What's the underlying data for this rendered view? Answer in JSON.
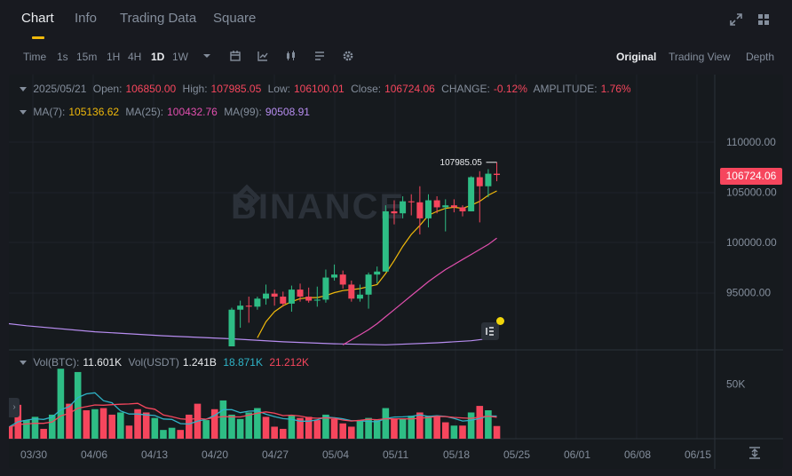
{
  "tabs": [
    "Chart",
    "Info",
    "Trading Data",
    "Square"
  ],
  "toolbar": {
    "intervals": [
      "Time",
      "1s",
      "15m",
      "1H",
      "4H",
      "1D",
      "1W"
    ],
    "active_interval": "1D",
    "views": [
      "Original",
      "Trading View",
      "Depth"
    ],
    "active_view": "Original"
  },
  "ohlc": {
    "date": "2025/05/21",
    "open_label": "Open:",
    "open": "106850.00",
    "high_label": "High:",
    "high": "107985.05",
    "low_label": "Low:",
    "low": "106100.01",
    "close_label": "Close:",
    "close": "106724.06",
    "change_label": "CHANGE:",
    "change": "-0.12%",
    "amplitude_label": "AMPLITUDE:",
    "amplitude": "1.76%"
  },
  "ma": {
    "ma7_label": "MA(7):",
    "ma7": "105136.62",
    "ma25_label": "MA(25):",
    "ma25": "100432.76",
    "ma99_label": "MA(99):",
    "ma99": "90508.91"
  },
  "vol": {
    "btc_label": "Vol(BTC):",
    "btc": "11.601K",
    "usdt_label": "Vol(USDT)",
    "usdt": "1.241B",
    "ma5": "18.871K",
    "ma10": "21.212K"
  },
  "price_axis": [
    "110000.00",
    "105000.00",
    "100000.00",
    "95000.00"
  ],
  "current_price": "106724.06",
  "high_marker": "107985.05",
  "vol_axis": "50K",
  "date_axis": [
    "03/30",
    "04/06",
    "04/13",
    "04/20",
    "04/27",
    "05/04",
    "05/11",
    "05/18",
    "05/25",
    "06/01",
    "06/08",
    "06/15"
  ],
  "watermark": "BINANCE",
  "colors": {
    "up": "#2ebd85",
    "down": "#f6465d",
    "ma7": "#f0b90b",
    "ma25": "#e14fae",
    "ma99": "#b78df0",
    "vol_ma5": "#2fb3c7",
    "vol_ma10": "#f6465d",
    "accent": "#f0b90b"
  },
  "chart_data": {
    "type": "candlestick",
    "price_ylim": [
      90000,
      112500
    ],
    "volume_ylim": [
      0,
      65000
    ],
    "candles": [
      {
        "date": "04/20",
        "o": 85200,
        "h": 93500,
        "l": 85000,
        "c": 93300
      },
      {
        "date": "04/21",
        "o": 93300,
        "h": 94200,
        "l": 91500,
        "c": 93700
      },
      {
        "date": "04/22",
        "o": 93700,
        "h": 94600,
        "l": 92000,
        "c": 93600
      },
      {
        "date": "04/23",
        "o": 93600,
        "h": 94600,
        "l": 93300,
        "c": 94400
      },
      {
        "date": "04/24",
        "o": 94400,
        "h": 95800,
        "l": 93800,
        "c": 94900
      },
      {
        "date": "04/25",
        "o": 94900,
        "h": 95300,
        "l": 93700,
        "c": 94600
      },
      {
        "date": "04/26",
        "o": 94600,
        "h": 95100,
        "l": 93600,
        "c": 93900
      },
      {
        "date": "04/27",
        "o": 93900,
        "h": 95700,
        "l": 93100,
        "c": 95300
      },
      {
        "date": "04/28",
        "o": 95300,
        "h": 95900,
        "l": 94100,
        "c": 94600
      },
      {
        "date": "04/29",
        "o": 94600,
        "h": 95500,
        "l": 94000,
        "c": 94200
      },
      {
        "date": "04/30",
        "o": 94200,
        "h": 95600,
        "l": 93600,
        "c": 94300
      },
      {
        "date": "05/01",
        "o": 94300,
        "h": 97300,
        "l": 94000,
        "c": 96500
      },
      {
        "date": "05/02",
        "o": 96500,
        "h": 97800,
        "l": 96200,
        "c": 96800
      },
      {
        "date": "05/03",
        "o": 96800,
        "h": 97200,
        "l": 95400,
        "c": 95800
      },
      {
        "date": "05/04",
        "o": 95800,
        "h": 96200,
        "l": 94100,
        "c": 94400
      },
      {
        "date": "05/05",
        "o": 94400,
        "h": 95800,
        "l": 94100,
        "c": 94800
      },
      {
        "date": "05/06",
        "o": 94800,
        "h": 97000,
        "l": 93400,
        "c": 96800
      },
      {
        "date": "05/07",
        "o": 96800,
        "h": 97600,
        "l": 95900,
        "c": 97100
      },
      {
        "date": "05/08",
        "o": 97100,
        "h": 103700,
        "l": 97100,
        "c": 103100
      },
      {
        "date": "05/09",
        "o": 103100,
        "h": 104200,
        "l": 101800,
        "c": 102900
      },
      {
        "date": "05/10",
        "o": 102900,
        "h": 104600,
        "l": 102400,
        "c": 104100
      },
      {
        "date": "05/11",
        "o": 104100,
        "h": 104800,
        "l": 102700,
        "c": 104000
      },
      {
        "date": "05/12",
        "o": 104000,
        "h": 105600,
        "l": 100800,
        "c": 102400
      },
      {
        "date": "05/13",
        "o": 102400,
        "h": 104800,
        "l": 101500,
        "c": 104200
      },
      {
        "date": "05/14",
        "o": 104200,
        "h": 104600,
        "l": 102900,
        "c": 103500
      },
      {
        "date": "05/15",
        "o": 103500,
        "h": 104300,
        "l": 101100,
        "c": 103700
      },
      {
        "date": "05/16",
        "o": 103700,
        "h": 104300,
        "l": 103000,
        "c": 103500
      },
      {
        "date": "05/17",
        "o": 103500,
        "h": 103700,
        "l": 102600,
        "c": 103100
      },
      {
        "date": "05/18",
        "o": 103100,
        "h": 106600,
        "l": 103100,
        "c": 106500
      },
      {
        "date": "05/19",
        "o": 106500,
        "h": 107100,
        "l": 102000,
        "c": 105600
      },
      {
        "date": "05/20",
        "o": 105600,
        "h": 107300,
        "l": 104500,
        "c": 106850
      },
      {
        "date": "05/21",
        "o": 106850,
        "h": 107985.05,
        "l": 106100.01,
        "c": 106724.06
      }
    ],
    "ma7": [
      [
        0,
        84200
      ],
      [
        1,
        86000
      ],
      [
        2,
        88300
      ],
      [
        3,
        90500
      ],
      [
        4,
        92100
      ],
      [
        5,
        93100
      ],
      [
        6,
        93700
      ],
      [
        7,
        94100
      ],
      [
        8,
        94400
      ],
      [
        9,
        94500
      ],
      [
        10,
        94500
      ],
      [
        11,
        94700
      ],
      [
        12,
        95000
      ],
      [
        13,
        95200
      ],
      [
        14,
        95300
      ],
      [
        15,
        95400
      ],
      [
        16,
        95600
      ],
      [
        17,
        95800
      ],
      [
        18,
        96900
      ],
      [
        19,
        98200
      ],
      [
        20,
        99600
      ],
      [
        21,
        100800
      ],
      [
        22,
        101700
      ],
      [
        23,
        102700
      ],
      [
        24,
        103100
      ],
      [
        25,
        103400
      ],
      [
        26,
        103500
      ],
      [
        27,
        103400
      ],
      [
        28,
        103700
      ],
      [
        29,
        104100
      ],
      [
        30,
        104700
      ],
      [
        31,
        105136.62
      ]
    ],
    "ma25": [
      [
        11,
        88800
      ],
      [
        12,
        89300
      ],
      [
        13,
        89800
      ],
      [
        14,
        90300
      ],
      [
        15,
        90800
      ],
      [
        16,
        91300
      ],
      [
        17,
        91900
      ],
      [
        18,
        92600
      ],
      [
        19,
        93300
      ],
      [
        20,
        94000
      ],
      [
        21,
        94700
      ],
      [
        22,
        95400
      ],
      [
        23,
        96100
      ],
      [
        24,
        96700
      ],
      [
        25,
        97300
      ],
      [
        26,
        97800
      ],
      [
        27,
        98300
      ],
      [
        28,
        98800
      ],
      [
        29,
        99300
      ],
      [
        30,
        99800
      ],
      [
        31,
        100432.76
      ]
    ],
    "ma99_note_points": [
      [
        -36,
        93100
      ],
      [
        -30,
        92300
      ],
      [
        -24,
        91700
      ],
      [
        -16,
        91100
      ],
      [
        -8,
        90700
      ],
      [
        0,
        90400
      ],
      [
        6,
        90100
      ],
      [
        12,
        89900
      ],
      [
        18,
        89800
      ],
      [
        24,
        90000
      ],
      [
        28,
        90200
      ],
      [
        31,
        90508.91
      ]
    ],
    "volume_bars": [
      {
        "d": -32,
        "v": 9500,
        "up": true
      },
      {
        "d": -31,
        "v": 9200,
        "up": true
      },
      {
        "d": -30,
        "v": 8500,
        "up": false
      },
      {
        "d": -29,
        "v": 9000,
        "up": false
      },
      {
        "d": -28,
        "v": 14000,
        "up": true
      },
      {
        "d": -27,
        "v": 12000,
        "up": true
      },
      {
        "d": -26,
        "v": 11000,
        "up": false
      },
      {
        "d": -25,
        "v": 31000,
        "up": false
      },
      {
        "d": -24,
        "v": 17000,
        "up": true
      },
      {
        "d": -23,
        "v": 20000,
        "up": true
      },
      {
        "d": -22,
        "v": 9000,
        "up": false
      },
      {
        "d": -21,
        "v": 22000,
        "up": true
      },
      {
        "d": -20,
        "v": 64000,
        "up": true
      },
      {
        "d": -19,
        "v": 32000,
        "up": false
      },
      {
        "d": -18,
        "v": 61000,
        "up": true
      },
      {
        "d": -17,
        "v": 26000,
        "up": false
      },
      {
        "d": -16,
        "v": 27000,
        "up": true
      },
      {
        "d": -15,
        "v": 28000,
        "up": false
      },
      {
        "d": -14,
        "v": 22000,
        "up": false
      },
      {
        "d": -13,
        "v": 24000,
        "up": true
      },
      {
        "d": -12,
        "v": 12000,
        "up": false
      },
      {
        "d": -11,
        "v": 27000,
        "up": false
      },
      {
        "d": -10,
        "v": 24000,
        "up": false
      },
      {
        "d": -9,
        "v": 19000,
        "up": true
      },
      {
        "d": -8,
        "v": 8000,
        "up": true
      },
      {
        "d": -7,
        "v": 10000,
        "up": true
      },
      {
        "d": -6,
        "v": 8000,
        "up": false
      },
      {
        "d": -5,
        "v": 22000,
        "up": false
      },
      {
        "d": -4,
        "v": 32000,
        "up": false
      },
      {
        "d": -3,
        "v": 17000,
        "up": true
      },
      {
        "d": -2,
        "v": 27000,
        "up": false
      },
      {
        "d": -1,
        "v": 35000,
        "up": true
      },
      {
        "d": 0,
        "v": 22000,
        "up": true
      },
      {
        "d": 1,
        "v": 18000,
        "up": true
      },
      {
        "d": 2,
        "v": 24000,
        "up": true
      },
      {
        "d": 3,
        "v": 28000,
        "up": true
      },
      {
        "d": 4,
        "v": 20000,
        "up": false
      },
      {
        "d": 5,
        "v": 11000,
        "up": false
      },
      {
        "d": 6,
        "v": 9000,
        "up": false
      },
      {
        "d": 7,
        "v": 21000,
        "up": true
      },
      {
        "d": 8,
        "v": 19000,
        "up": false
      },
      {
        "d": 9,
        "v": 20000,
        "up": false
      },
      {
        "d": 10,
        "v": 17000,
        "up": false
      },
      {
        "d": 11,
        "v": 22000,
        "up": true
      },
      {
        "d": 12,
        "v": 18000,
        "up": false
      },
      {
        "d": 13,
        "v": 14000,
        "up": false
      },
      {
        "d": 14,
        "v": 11000,
        "up": false
      },
      {
        "d": 15,
        "v": 17000,
        "up": true
      },
      {
        "d": 16,
        "v": 19000,
        "up": true
      },
      {
        "d": 17,
        "v": 17000,
        "up": true
      },
      {
        "d": 18,
        "v": 28000,
        "up": true
      },
      {
        "d": 19,
        "v": 18000,
        "up": false
      },
      {
        "d": 20,
        "v": 18000,
        "up": true
      },
      {
        "d": 21,
        "v": 21000,
        "up": true
      },
      {
        "d": 22,
        "v": 24000,
        "up": false
      },
      {
        "d": 23,
        "v": 21000,
        "up": true
      },
      {
        "d": 24,
        "v": 21000,
        "up": false
      },
      {
        "d": 25,
        "v": 15000,
        "up": false
      },
      {
        "d": 26,
        "v": 12000,
        "up": true
      },
      {
        "d": 27,
        "v": 12000,
        "up": false
      },
      {
        "d": 28,
        "v": 24000,
        "up": true
      },
      {
        "d": 29,
        "v": 30000,
        "up": false
      },
      {
        "d": 30,
        "v": 26000,
        "up": true
      },
      {
        "d": 31,
        "v": 11601,
        "up": false
      }
    ]
  }
}
